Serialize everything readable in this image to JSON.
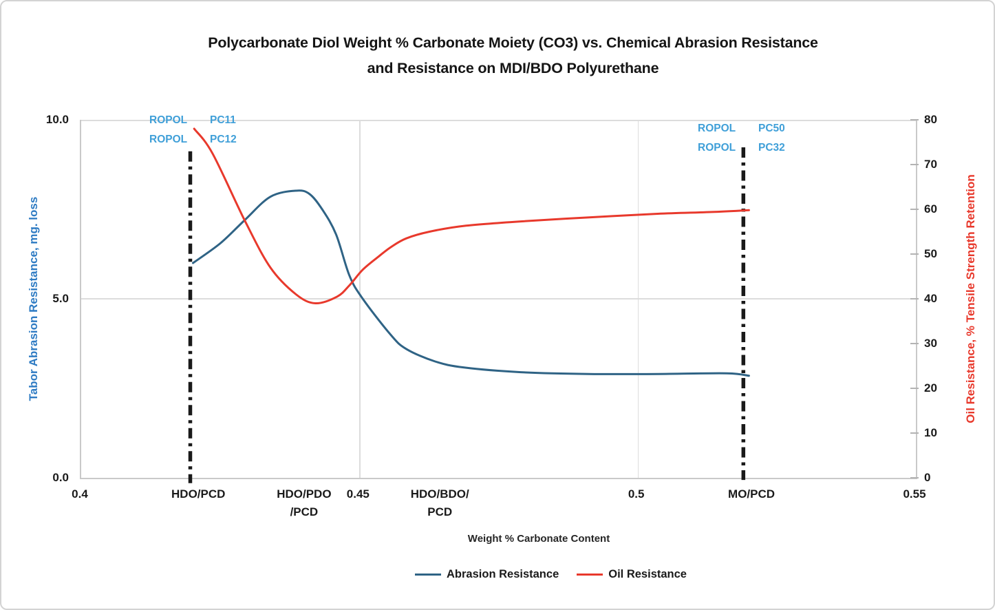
{
  "title": {
    "line1": "Polycarbonate Diol Weight % Carbonate Moiety (CO3) vs. Chemical Abrasion Resistance",
    "line2": "and Resistance on MDI/BDO Polyurethane"
  },
  "axes": {
    "left": {
      "title": "Tabor Abrasion Resistance, mg. loss",
      "tick_labels": [
        "10.0",
        "5.0",
        "0.0"
      ],
      "color": "#2e7bc3"
    },
    "right": {
      "title": "Oil Resistance, % Tensile Strength Retention",
      "tick_labels": [
        "80",
        "70",
        "60",
        "50",
        "40",
        "30",
        "20",
        "10",
        "0"
      ],
      "color": "#e8392c"
    },
    "x": {
      "title": "Weight % Carbonate Content",
      "labels": [
        {
          "text": "0.4",
          "x": 0.4
        },
        {
          "text": "HDO/PCD",
          "x": 0.4213
        },
        {
          "text": "HDO/PDO\n/PCD",
          "x": 0.4403
        },
        {
          "text": "0.45",
          "x": 0.45
        },
        {
          "text": "HDO/BDO/\nPCD",
          "x": 0.4647
        },
        {
          "text": "0.5",
          "x": 0.5
        },
        {
          "text": "MO/PCD",
          "x": 0.5207
        },
        {
          "text": "0.55",
          "x": 0.55
        }
      ]
    }
  },
  "annotations": {
    "left": [
      {
        "name": "ROPOL",
        "code": "PC11"
      },
      {
        "name": "ROPOL",
        "code": "PC12"
      }
    ],
    "right": [
      {
        "name": "ROPOL",
        "code": "PC50"
      },
      {
        "name": "ROPOL",
        "code": "PC32"
      }
    ],
    "color": "#3f9fd8"
  },
  "colors": {
    "abrasion_line": "#2f6385",
    "oil_line": "#e8392c",
    "marker_line": "#1a1a1a",
    "grid": "#dcdcdc",
    "annotation_blue": "#3f9fd8",
    "left_axis_blue": "#2e7bc3",
    "right_axis_red": "#e8392c"
  },
  "chart_data": {
    "type": "line",
    "title": "Polycarbonate Diol Weight % Carbonate Moiety (CO3) vs. Chemical Abrasion Resistance and Resistance on MDI/BDO Polyurethane",
    "xlabel": "Weight % Carbonate Content",
    "x_range": [
      0.4,
      0.55
    ],
    "x_ticks": [
      0.4,
      0.45,
      0.5,
      0.55
    ],
    "x_category_labels": [
      {
        "text": "HDO/PCD",
        "x": 0.4213
      },
      {
        "text": "HDO/PDO/PCD",
        "x": 0.4403
      },
      {
        "text": "HDO/BDO/PCD",
        "x": 0.4647
      },
      {
        "text": "MO/PCD",
        "x": 0.5207
      }
    ],
    "left_axis": {
      "label": "Tabor Abrasion Resistance, mg. loss",
      "range": [
        0,
        10
      ],
      "ticks": [
        0,
        5,
        10
      ]
    },
    "right_axis": {
      "label": "Oil Resistance, % Tensile Strength Retention",
      "range": [
        0,
        80
      ],
      "ticks": [
        0,
        10,
        20,
        30,
        40,
        50,
        60,
        70,
        80
      ]
    },
    "grid": true,
    "legend_position": "bottom",
    "series": [
      {
        "name": "Abrasion Resistance",
        "axis": "left",
        "color": "#2f6385",
        "points": [
          [
            0.4201,
            6.0
          ],
          [
            0.425,
            6.55
          ],
          [
            0.4294,
            7.2
          ],
          [
            0.434,
            7.85
          ],
          [
            0.4386,
            8.02
          ],
          [
            0.441,
            7.93
          ],
          [
            0.4433,
            7.5
          ],
          [
            0.4458,
            6.8
          ],
          [
            0.4482,
            5.65
          ],
          [
            0.4506,
            5.0
          ],
          [
            0.4556,
            4.0
          ],
          [
            0.4584,
            3.6
          ],
          [
            0.4636,
            3.25
          ],
          [
            0.4688,
            3.08
          ],
          [
            0.479,
            2.95
          ],
          [
            0.4913,
            2.9
          ],
          [
            0.5036,
            2.9
          ],
          [
            0.516,
            2.92
          ],
          [
            0.52,
            2.85
          ]
        ]
      },
      {
        "name": "Oil Resistance",
        "axis": "right",
        "color": "#e8392c",
        "points": [
          [
            0.4203,
            78
          ],
          [
            0.4236,
            72.5
          ],
          [
            0.4294,
            57.5
          ],
          [
            0.434,
            47
          ],
          [
            0.4386,
            41
          ],
          [
            0.4421,
            39
          ],
          [
            0.446,
            40.5
          ],
          [
            0.4482,
            43
          ],
          [
            0.4506,
            46.5
          ],
          [
            0.4535,
            49.5
          ],
          [
            0.4556,
            51.5
          ],
          [
            0.4584,
            53.5
          ],
          [
            0.4626,
            55
          ],
          [
            0.4688,
            56.3
          ],
          [
            0.479,
            57.3
          ],
          [
            0.4913,
            58.2
          ],
          [
            0.5036,
            59
          ],
          [
            0.5134,
            59.4
          ],
          [
            0.52,
            59.8
          ]
        ]
      }
    ],
    "vlines": [
      {
        "x": 0.4196,
        "y_from": -0.15,
        "y_to": 9.12,
        "style": "dash-dot",
        "color": "#1a1a1a"
      },
      {
        "x": 0.519,
        "y_from": -0.06,
        "y_to": 9.23,
        "style": "dash-dot",
        "color": "#1a1a1a"
      }
    ]
  }
}
